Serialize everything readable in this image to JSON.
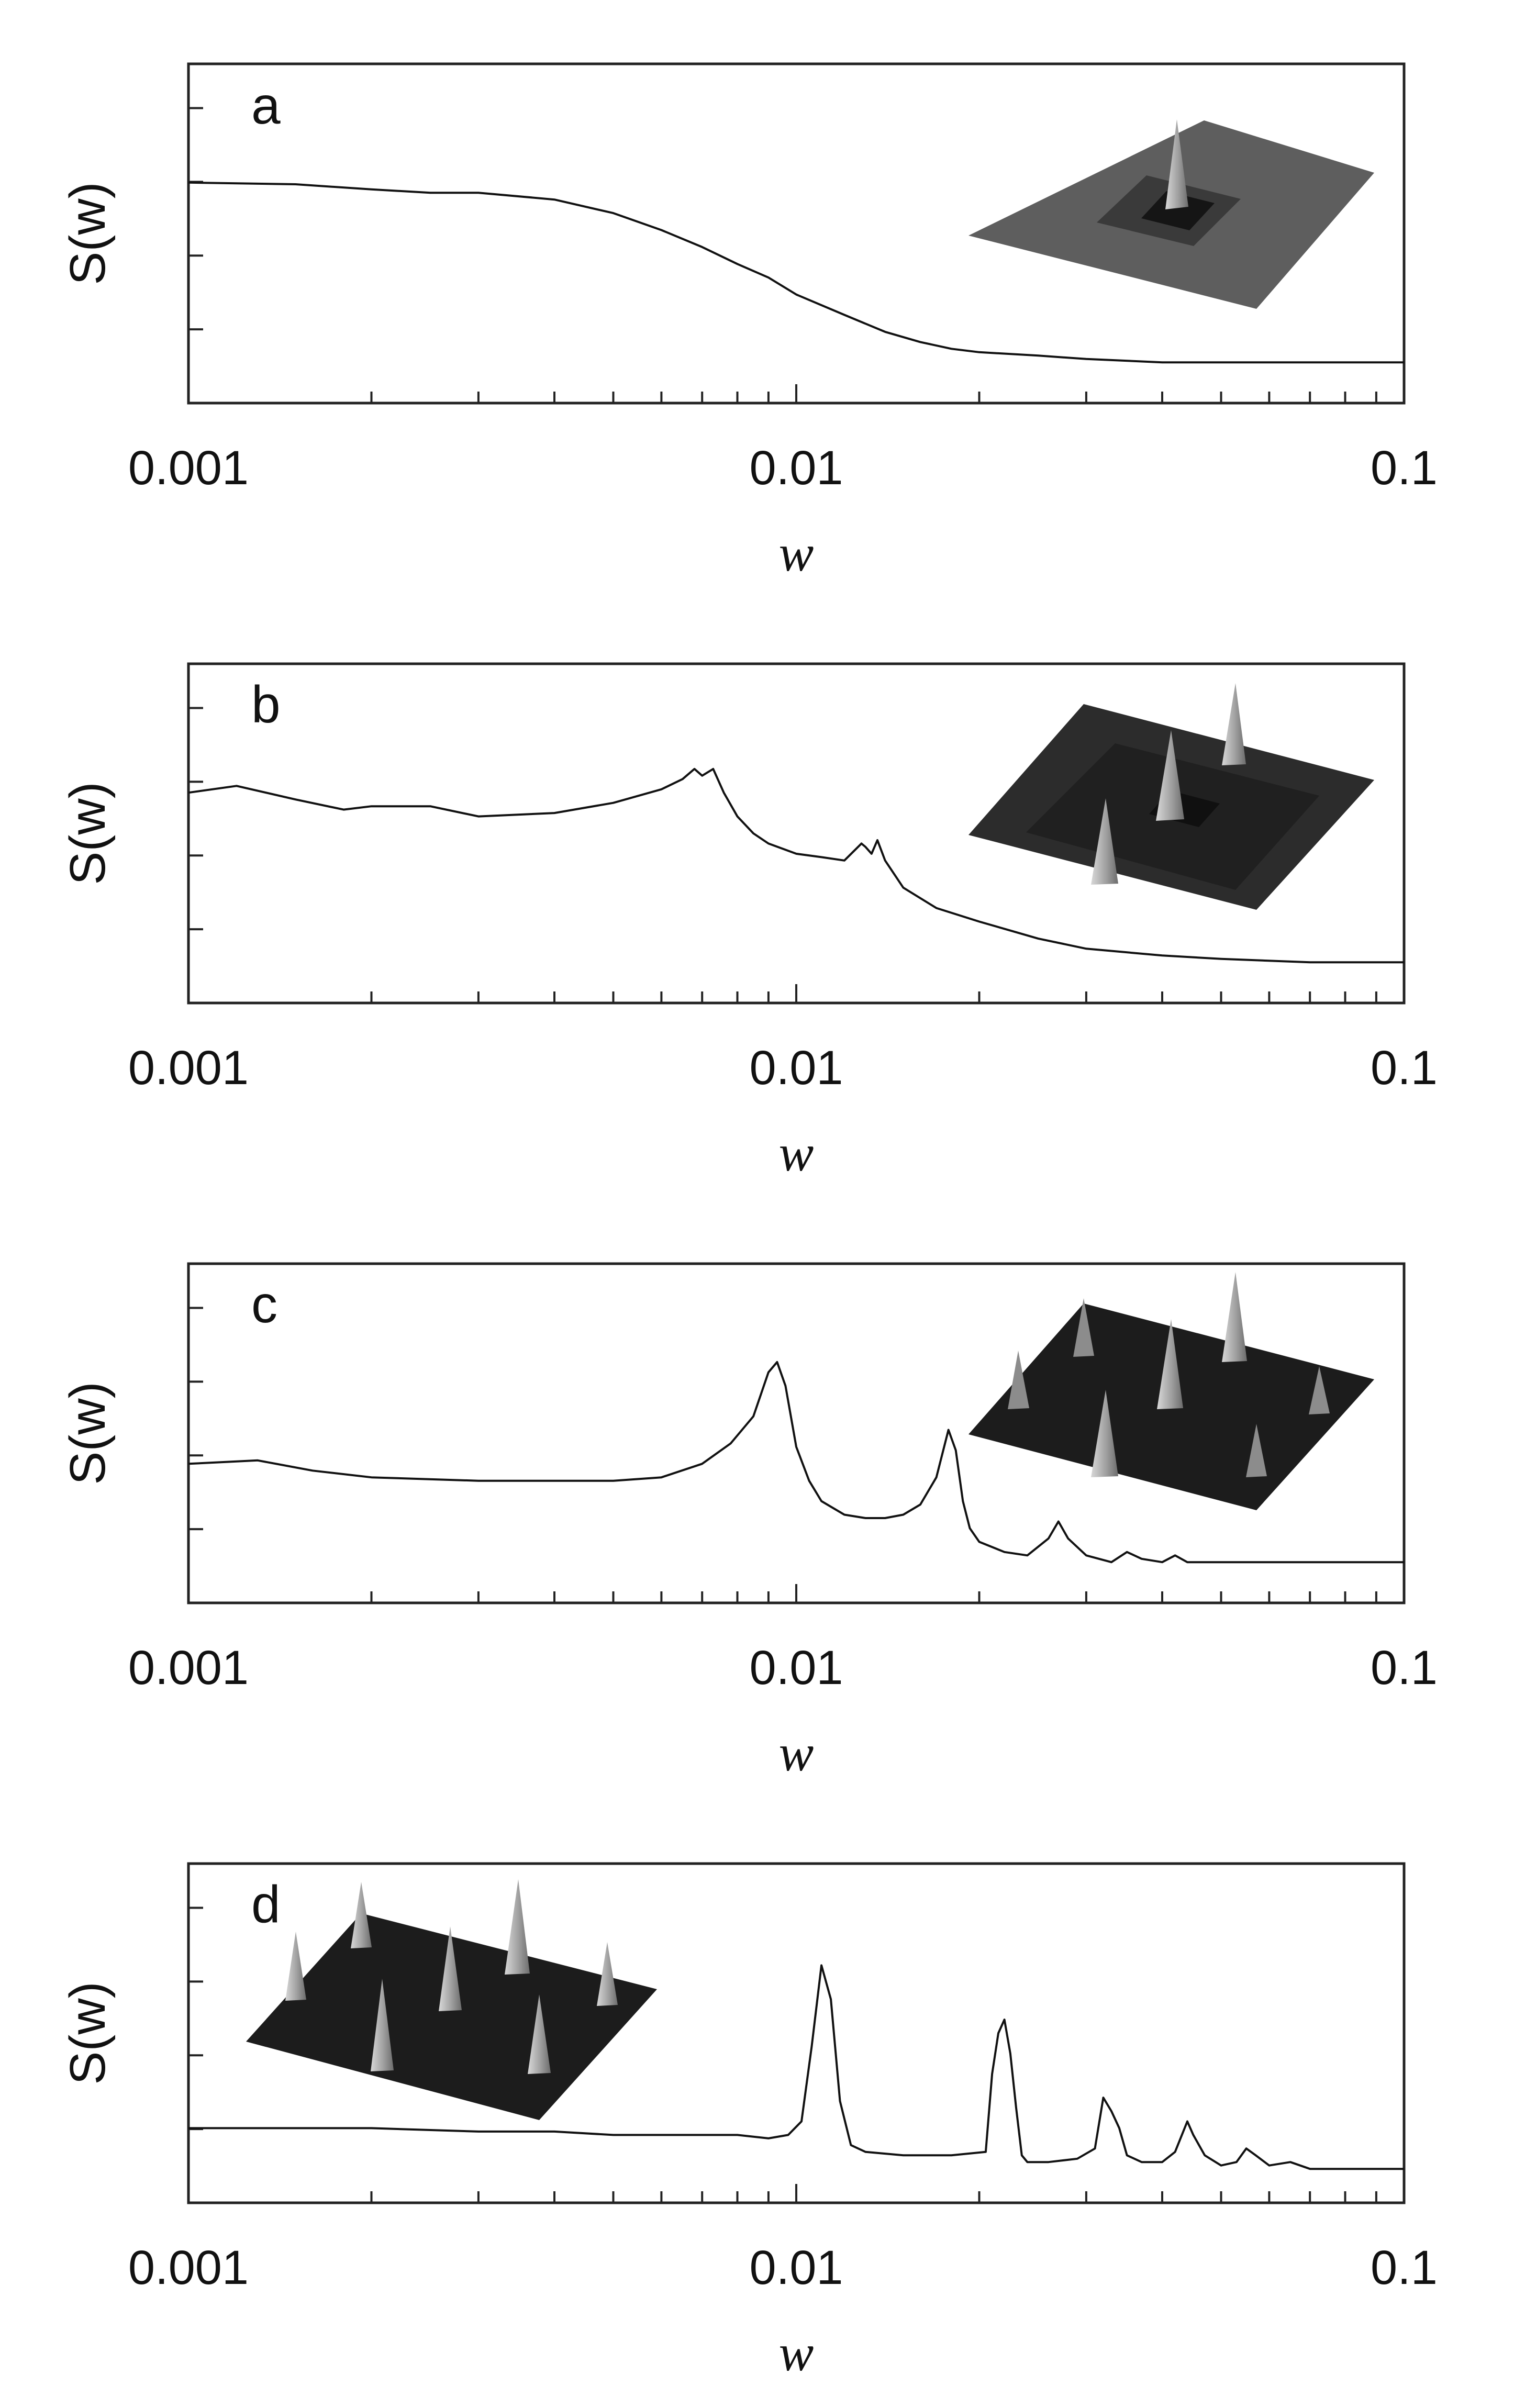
{
  "chart_data": [
    {
      "type": "line",
      "panel_label": "a",
      "xlabel": "w",
      "ylabel": "S(w)",
      "xscale": "log",
      "xlim": [
        0.001,
        0.1
      ],
      "ylim": [
        0,
        1
      ],
      "xticks": [
        0.001,
        0.01,
        0.1
      ],
      "xtick_labels": [
        "0.001",
        "0.01",
        "0.1"
      ],
      "y_tick_count": 4,
      "grid": false,
      "inset": "3D surface plot, single central peak",
      "series": [
        {
          "x": [
            0.001,
            0.0015,
            0.002,
            0.0025,
            0.003,
            0.004,
            0.005,
            0.006,
            0.007,
            0.008,
            0.009,
            0.01,
            0.012,
            0.014,
            0.016,
            0.018,
            0.02,
            0.025,
            0.03,
            0.04,
            0.05,
            0.07,
            0.1
          ],
          "y": [
            0.65,
            0.645,
            0.63,
            0.62,
            0.62,
            0.6,
            0.56,
            0.51,
            0.46,
            0.41,
            0.37,
            0.32,
            0.26,
            0.21,
            0.18,
            0.16,
            0.15,
            0.14,
            0.13,
            0.12,
            0.12,
            0.12,
            0.12
          ]
        }
      ]
    },
    {
      "type": "line",
      "panel_label": "b",
      "xlabel": "w",
      "ylabel": "S(w)",
      "xscale": "log",
      "xlim": [
        0.001,
        0.1
      ],
      "ylim": [
        0,
        1
      ],
      "xticks": [
        0.001,
        0.01,
        0.1
      ],
      "xtick_labels": [
        "0.001",
        "0.01",
        "0.1"
      ],
      "y_tick_count": 4,
      "grid": false,
      "inset": "3D surface plot, three peaks",
      "series": [
        {
          "x": [
            0.001,
            0.0012,
            0.0015,
            0.0018,
            0.002,
            0.0025,
            0.003,
            0.004,
            0.005,
            0.006,
            0.0065,
            0.0068,
            0.007,
            0.0073,
            0.0076,
            0.008,
            0.0085,
            0.009,
            0.01,
            0.011,
            0.012,
            0.0128,
            0.013,
            0.0133,
            0.0136,
            0.014,
            0.015,
            0.017,
            0.02,
            0.025,
            0.03,
            0.04,
            0.05,
            0.07,
            0.1
          ],
          "y": [
            0.62,
            0.64,
            0.6,
            0.57,
            0.58,
            0.58,
            0.55,
            0.56,
            0.59,
            0.63,
            0.66,
            0.69,
            0.67,
            0.69,
            0.62,
            0.55,
            0.5,
            0.47,
            0.44,
            0.43,
            0.42,
            0.47,
            0.46,
            0.44,
            0.48,
            0.42,
            0.34,
            0.28,
            0.24,
            0.19,
            0.16,
            0.14,
            0.13,
            0.12,
            0.12
          ]
        }
      ]
    },
    {
      "type": "line",
      "panel_label": "c",
      "xlabel": "w",
      "ylabel": "S(w)",
      "xscale": "log",
      "xlim": [
        0.001,
        0.1
      ],
      "ylim": [
        0,
        1
      ],
      "xticks": [
        0.001,
        0.01,
        0.1
      ],
      "xtick_labels": [
        "0.001",
        "0.01",
        "0.1"
      ],
      "y_tick_count": 4,
      "grid": false,
      "inset": "3D surface plot, multiple peaks",
      "series": [
        {
          "x": [
            0.001,
            0.0013,
            0.0016,
            0.002,
            0.003,
            0.004,
            0.005,
            0.006,
            0.007,
            0.0078,
            0.0085,
            0.009,
            0.0093,
            0.0096,
            0.01,
            0.0105,
            0.011,
            0.012,
            0.013,
            0.014,
            0.015,
            0.016,
            0.017,
            0.0178,
            0.0183,
            0.0188,
            0.0193,
            0.02,
            0.022,
            0.024,
            0.026,
            0.027,
            0.028,
            0.03,
            0.033,
            0.035,
            0.037,
            0.04,
            0.042,
            0.044,
            0.05,
            0.06,
            0.07,
            0.1
          ],
          "y": [
            0.41,
            0.42,
            0.39,
            0.37,
            0.36,
            0.36,
            0.36,
            0.37,
            0.41,
            0.47,
            0.55,
            0.68,
            0.71,
            0.64,
            0.46,
            0.36,
            0.3,
            0.26,
            0.25,
            0.25,
            0.26,
            0.29,
            0.37,
            0.51,
            0.45,
            0.3,
            0.22,
            0.18,
            0.15,
            0.14,
            0.19,
            0.24,
            0.19,
            0.14,
            0.12,
            0.15,
            0.13,
            0.12,
            0.14,
            0.12,
            0.12,
            0.12,
            0.12,
            0.12
          ]
        }
      ]
    },
    {
      "type": "line",
      "panel_label": "d",
      "xlabel": "w",
      "ylabel": "S(w)",
      "xscale": "log",
      "xlim": [
        0.001,
        0.1
      ],
      "ylim": [
        0,
        1
      ],
      "xticks": [
        0.001,
        0.01,
        0.1
      ],
      "xtick_labels": [
        "0.001",
        "0.01",
        "0.1"
      ],
      "y_tick_count": 4,
      "grid": false,
      "inset": "3D surface plot, lattice of peaks",
      "series": [
        {
          "x": [
            0.001,
            0.002,
            0.003,
            0.004,
            0.005,
            0.006,
            0.007,
            0.008,
            0.009,
            0.0097,
            0.0102,
            0.0106,
            0.011,
            0.0114,
            0.0118,
            0.0123,
            0.013,
            0.015,
            0.018,
            0.0205,
            0.021,
            0.0215,
            0.022,
            0.0225,
            0.023,
            0.0235,
            0.024,
            0.026,
            0.029,
            0.031,
            0.032,
            0.033,
            0.034,
            0.035,
            0.037,
            0.04,
            0.042,
            0.044,
            0.045,
            0.047,
            0.05,
            0.053,
            0.055,
            0.057,
            0.06,
            0.065,
            0.07,
            0.08,
            0.1
          ],
          "y": [
            0.22,
            0.22,
            0.21,
            0.21,
            0.2,
            0.2,
            0.2,
            0.2,
            0.19,
            0.2,
            0.24,
            0.46,
            0.7,
            0.6,
            0.3,
            0.17,
            0.15,
            0.14,
            0.14,
            0.15,
            0.38,
            0.5,
            0.54,
            0.44,
            0.28,
            0.14,
            0.12,
            0.12,
            0.13,
            0.16,
            0.31,
            0.27,
            0.22,
            0.14,
            0.12,
            0.12,
            0.15,
            0.24,
            0.2,
            0.14,
            0.11,
            0.12,
            0.16,
            0.14,
            0.11,
            0.12,
            0.1,
            0.1,
            0.1
          ]
        }
      ]
    }
  ]
}
